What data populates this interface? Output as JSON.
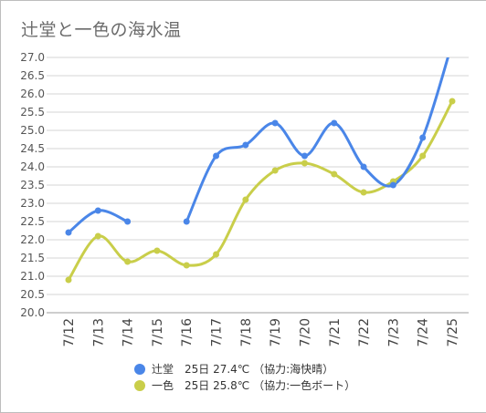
{
  "chart_data": {
    "type": "line",
    "title": "辻堂と一色の海水温",
    "categories": [
      "7/12",
      "7/13",
      "7/14",
      "7/15",
      "7/16",
      "7/17",
      "7/18",
      "7/19",
      "7/20",
      "7/21",
      "7/22",
      "7/23",
      "7/24",
      "7/25"
    ],
    "ylim": [
      20.0,
      27.0
    ],
    "yticks": [
      "20.0",
      "20.5",
      "21.0",
      "21.5",
      "22.0",
      "22.5",
      "23.0",
      "23.5",
      "24.0",
      "24.5",
      "25.0",
      "25.5",
      "26.0",
      "26.5",
      "27.0"
    ],
    "grid": true,
    "legend_position": "bottom",
    "series": [
      {
        "name": "辻堂　25日 27.4℃ （協力:海快晴）",
        "color": "#4a86e8",
        "values": [
          22.2,
          22.8,
          22.5,
          null,
          22.5,
          24.3,
          24.6,
          25.2,
          24.3,
          25.2,
          24.0,
          23.5,
          24.8,
          27.4
        ]
      },
      {
        "name": "一色　25日 25.8℃ （協力:一色ボート）",
        "color": "#c9ce4a",
        "values": [
          20.9,
          22.1,
          21.4,
          21.7,
          21.3,
          21.6,
          23.1,
          23.9,
          24.1,
          23.8,
          23.3,
          23.6,
          24.3,
          25.8
        ]
      }
    ]
  }
}
